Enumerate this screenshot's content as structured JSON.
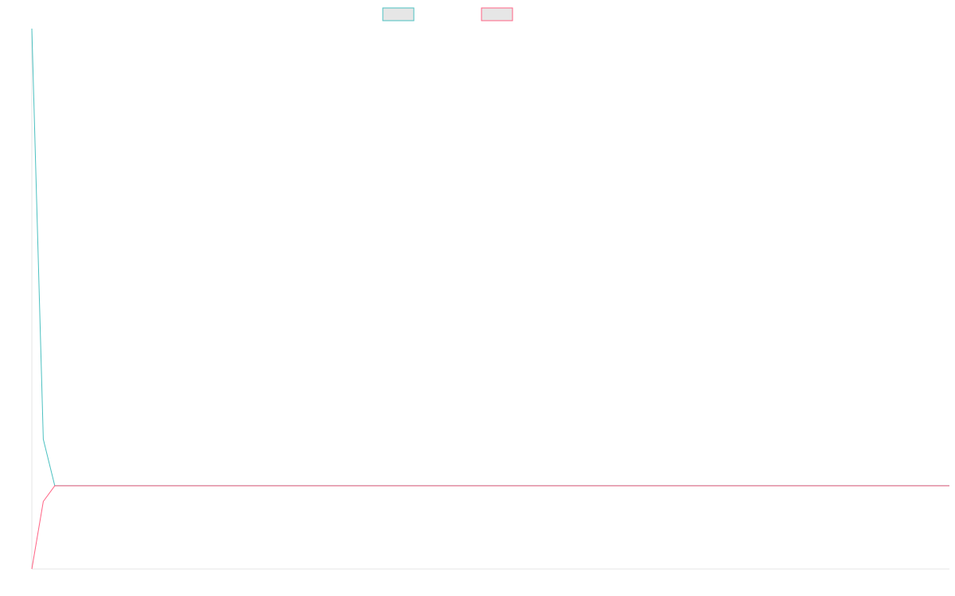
{
  "chart_data": {
    "type": "line",
    "title": "",
    "xlabel": "",
    "ylabel": "",
    "grid": false,
    "legend_position": "top-center",
    "x": [
      0,
      1,
      2,
      3,
      4,
      5,
      6,
      7,
      8,
      9,
      10,
      11,
      12,
      13,
      14,
      15,
      16,
      17,
      18,
      19,
      20,
      21,
      22,
      23,
      24,
      25,
      26,
      27,
      28,
      29,
      30,
      31,
      32,
      33,
      34,
      35,
      36,
      37,
      38,
      39,
      40,
      41,
      42,
      43,
      44,
      45,
      46,
      47,
      48,
      49,
      50,
      51,
      52,
      53,
      54,
      55,
      56,
      57,
      58,
      59,
      60,
      61,
      62,
      63,
      64,
      65,
      66,
      67,
      68,
      69,
      70,
      71,
      72,
      73,
      74,
      75,
      76,
      77,
      78,
      79,
      80
    ],
    "ylim": [
      0,
      100
    ],
    "series": [
      {
        "name": "",
        "color": "#4bc0c0",
        "fill": "#e6e6e6",
        "values": [
          100,
          24,
          15.4,
          15.4,
          15.4,
          15.4,
          15.4,
          15.4,
          15.4,
          15.4,
          15.4,
          15.4,
          15.4,
          15.4,
          15.4,
          15.4,
          15.4,
          15.4,
          15.4,
          15.4,
          15.4,
          15.4,
          15.4,
          15.4,
          15.4,
          15.4,
          15.4,
          15.4,
          15.4,
          15.4,
          15.4,
          15.4,
          15.4,
          15.4,
          15.4,
          15.4,
          15.4,
          15.4,
          15.4,
          15.4,
          15.4,
          15.4,
          15.4,
          15.4,
          15.4,
          15.4,
          15.4,
          15.4,
          15.4,
          15.4,
          15.4,
          15.4,
          15.4,
          15.4,
          15.4,
          15.4,
          15.4,
          15.4,
          15.4,
          15.4,
          15.4,
          15.4,
          15.4,
          15.4,
          15.4,
          15.4,
          15.4,
          15.4,
          15.4,
          15.4,
          15.4,
          15.4,
          15.4,
          15.4,
          15.4,
          15.4,
          15.4,
          15.4,
          15.4,
          15.4,
          15.4
        ]
      },
      {
        "name": "",
        "color": "#ff6384",
        "fill": "#e6e6e6",
        "values": [
          0,
          12.5,
          15.4,
          15.4,
          15.4,
          15.4,
          15.4,
          15.4,
          15.4,
          15.4,
          15.4,
          15.4,
          15.4,
          15.4,
          15.4,
          15.4,
          15.4,
          15.4,
          15.4,
          15.4,
          15.4,
          15.4,
          15.4,
          15.4,
          15.4,
          15.4,
          15.4,
          15.4,
          15.4,
          15.4,
          15.4,
          15.4,
          15.4,
          15.4,
          15.4,
          15.4,
          15.4,
          15.4,
          15.4,
          15.4,
          15.4,
          15.4,
          15.4,
          15.4,
          15.4,
          15.4,
          15.4,
          15.4,
          15.4,
          15.4,
          15.4,
          15.4,
          15.4,
          15.4,
          15.4,
          15.4,
          15.4,
          15.4,
          15.4,
          15.4,
          15.4,
          15.4,
          15.4,
          15.4,
          15.4,
          15.4,
          15.4,
          15.4,
          15.4,
          15.4,
          15.4,
          15.4,
          15.4,
          15.4,
          15.4,
          15.4,
          15.4,
          15.4,
          15.4,
          15.4,
          15.4
        ]
      }
    ]
  }
}
